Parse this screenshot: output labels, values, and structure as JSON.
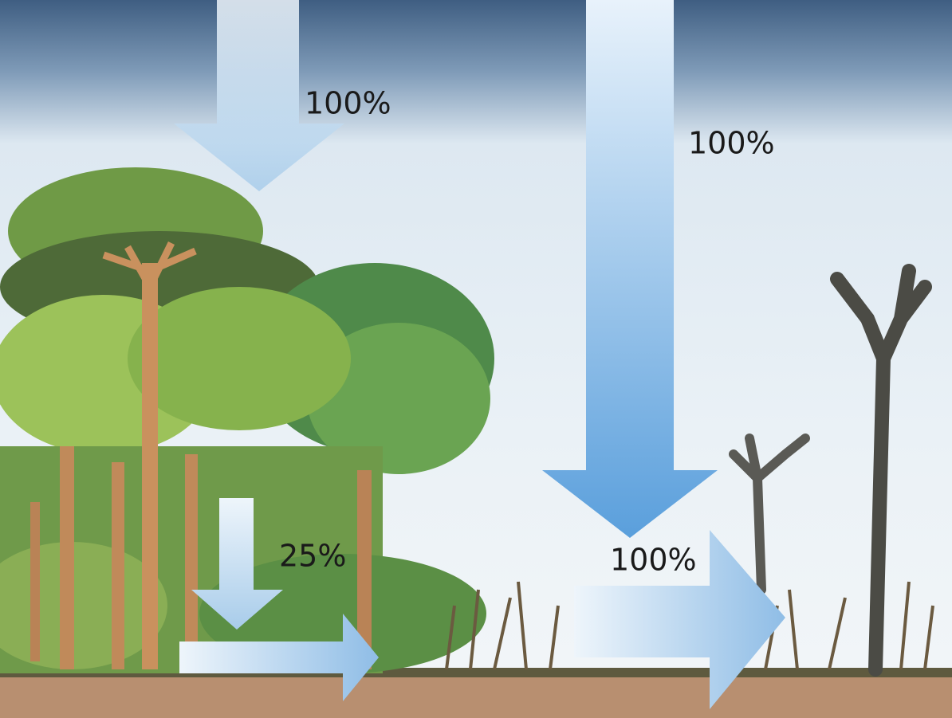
{
  "labels": [
    "100%",
    "100%",
    "25%",
    "100%"
  ]
}
